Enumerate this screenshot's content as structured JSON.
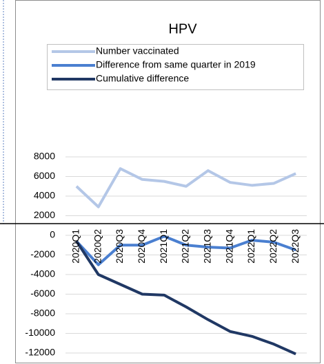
{
  "chart_data": {
    "type": "line",
    "title": "HPV",
    "categories": [
      "2020Q1",
      "2020Q2",
      "2020Q3",
      "2020Q4",
      "2021Q1",
      "2021Q2",
      "2021Q3",
      "2021Q4",
      "2022Q1",
      "2022Q2",
      "2022Q3"
    ],
    "series": [
      {
        "name": "Number vaccinated",
        "color": "#b4c7e7",
        "values": [
          5000,
          2900,
          6800,
          5700,
          5500,
          5000,
          6600,
          5400,
          5100,
          5300,
          6300
        ]
      },
      {
        "name": "Difference from same quarter in 2019",
        "color": "#4a7fd0",
        "values": [
          -600,
          -3000,
          -1000,
          -1000,
          -100,
          -1000,
          -1200,
          -1300,
          -500,
          -700,
          -1500
        ]
      },
      {
        "name": "Cumulative difference",
        "color": "#203864",
        "values": [
          -600,
          -4000,
          -5000,
          -6000,
          -6100,
          -7300,
          -8600,
          -9800,
          -10300,
          -11100,
          -12100
        ]
      }
    ],
    "ylim": [
      -12000,
      8000
    ],
    "yticks": [
      8000,
      6000,
      4000,
      2000,
      0,
      -2000,
      -4000,
      -6000,
      -8000,
      -10000,
      -12000
    ],
    "grid": true,
    "legend": "top"
  }
}
